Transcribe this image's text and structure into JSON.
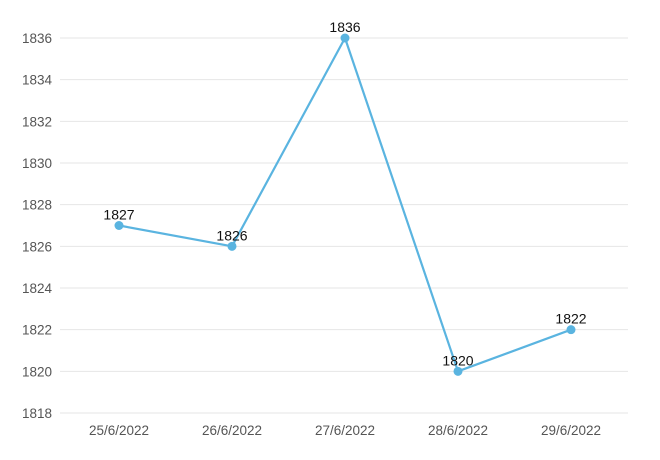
{
  "chart_data": {
    "type": "line",
    "title": "",
    "xlabel": "",
    "ylabel": "",
    "categories": [
      "25/6/2022",
      "26/6/2022",
      "27/6/2022",
      "28/6/2022",
      "29/6/2022"
    ],
    "series": [
      {
        "values": [
          1827,
          1826,
          1836,
          1820,
          1822
        ],
        "color": "#5ab4e0"
      }
    ],
    "ylim": [
      1818,
      1836
    ],
    "yticks": [
      1818,
      1820,
      1822,
      1824,
      1826,
      1828,
      1830,
      1832,
      1834,
      1836
    ],
    "grid": true,
    "legend": "none",
    "data_labels": true
  }
}
